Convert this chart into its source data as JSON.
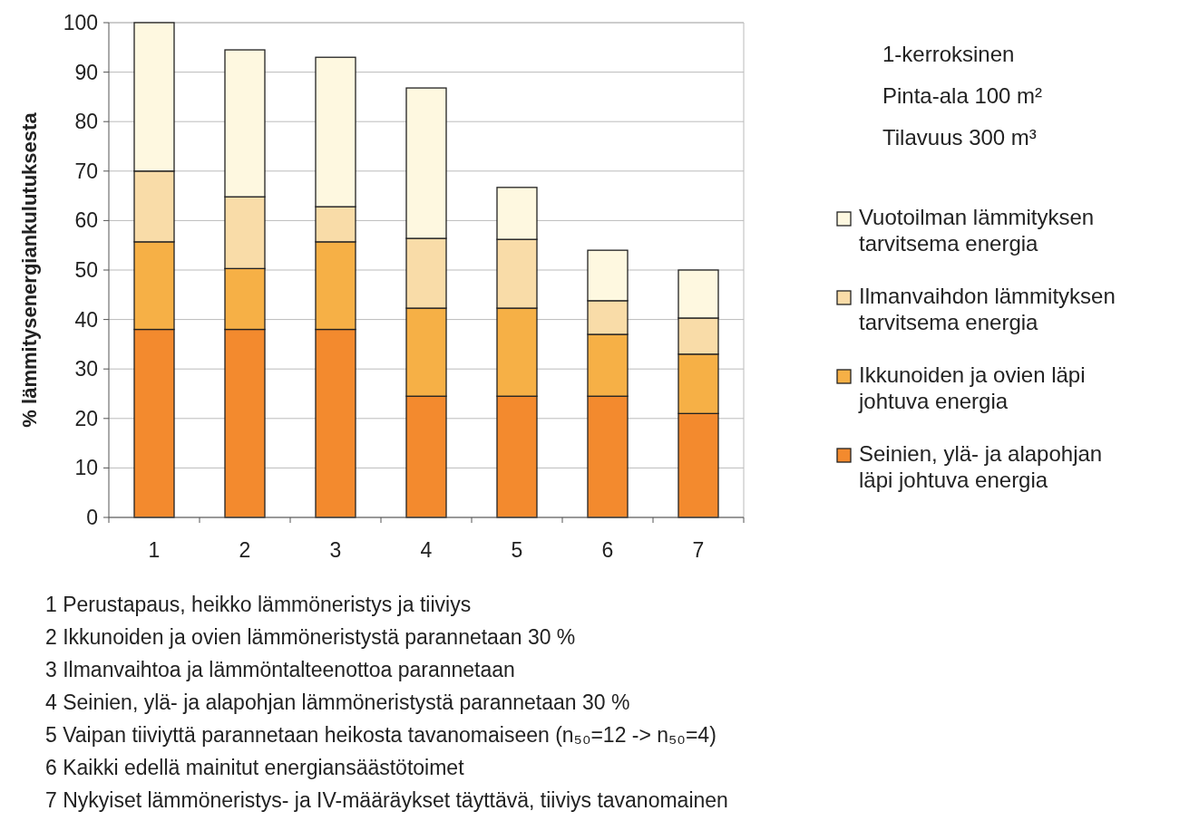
{
  "chart_data": {
    "type": "bar",
    "stacked": true,
    "ylabel": "% lämmitysenergiankulutuksesta",
    "categories": [
      "1",
      "2",
      "3",
      "4",
      "5",
      "6",
      "7"
    ],
    "series": [
      {
        "name": "Seinien, ylä- ja alapohjan läpi johtuva energia",
        "color": "#f38a2e",
        "values": [
          38,
          38,
          38,
          24.5,
          24.5,
          24.5,
          21
        ]
      },
      {
        "name": "Ikkunoiden ja ovien läpi johtuva energia",
        "color": "#f6b046",
        "values": [
          17.7,
          12.3,
          17.7,
          17.8,
          17.8,
          12.5,
          12
        ]
      },
      {
        "name": "Ilmanvaihdon lämmityksen tarvitsema energia",
        "color": "#f9dca8",
        "values": [
          14.3,
          14.5,
          7.1,
          14.1,
          13.9,
          6.8,
          7.3
        ]
      },
      {
        "name": "Vuotoilman lämmityksen tarvitsema energia",
        "color": "#fef8e0",
        "values": [
          30,
          29.7,
          30.2,
          30.4,
          10.5,
          10.2,
          9.7
        ]
      }
    ],
    "ylim": [
      0,
      100
    ],
    "yticks": [
      0,
      10,
      20,
      30,
      40,
      50,
      60,
      70,
      80,
      90,
      100
    ],
    "grid": "y",
    "legend": "right",
    "annotations": [
      "1-kerroksinen",
      "Pinta-ala 100 m²",
      "Tilavuus 300 m³",
      "1 Perustapaus, heikko lämmöneristys ja tiiviys",
      "2 Ikkunoiden ja ovien lämmöneristystä parannetaan 30 %",
      "3 Ilmanvaihtoa ja lämmöntalteenottoa parannetaan",
      "4 Seinien, ylä- ja alapohjan lämmöneristystä parannetaan 30 %",
      "5 Vaipan tiiviyttä parannetaan heikosta tavanomaiseen (n₅₀=12  -> n₅₀=4)",
      "6 Kaikki edellä mainitut energiansäästötoimet",
      "7 Nykyiset lämmöneristys- ja IV-määräykset täyttävä, tiiviys tavanomainen"
    ]
  }
}
